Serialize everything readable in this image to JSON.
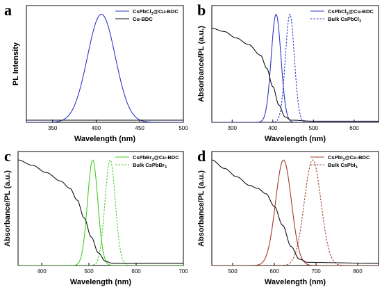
{
  "chart_data": [
    {
      "panel": "a",
      "type": "line",
      "xlabel": "Wavelength (nm)",
      "ylabel": "PL Intensity",
      "xlim": [
        320,
        500
      ],
      "ylim": [
        0,
        1.08
      ],
      "xticks": [
        350,
        400,
        450,
        500
      ],
      "legend_position": "top-right",
      "series": [
        {
          "name": "CsPbCl3@Cu-BDC",
          "legend": {
            "base": "CsPbCl",
            "sub": "3",
            "rest": "@Cu-BDC"
          },
          "color": "#2e35c8",
          "dash": false,
          "kind": "gauss",
          "center": 406,
          "sigma": 16,
          "amp": 1.0,
          "offset": 0.0
        },
        {
          "name": "Cu-BDC",
          "legend": {
            "base": "Cu-BDC",
            "sub": "",
            "rest": ""
          },
          "color": "#111111",
          "dash": false,
          "kind": "flat",
          "value": 0.02
        }
      ]
    },
    {
      "panel": "b",
      "type": "line",
      "xlabel": "Wavelength (nm)",
      "ylabel": "Absorbance/PL (a.u.)",
      "xlim": [
        250,
        660
      ],
      "ylim": [
        0,
        1.08
      ],
      "xticks": [
        300,
        400,
        500,
        600
      ],
      "legend_position": "top-right",
      "series": [
        {
          "name": "CsPbCl3@Cu-BDC",
          "legend": {
            "base": "CsPbCl",
            "sub": "3",
            "rest": "@Cu-BDC"
          },
          "color": "#2e35c8",
          "dash": false,
          "kind": "gauss",
          "center": 408,
          "sigma": 12,
          "amp": 1.0,
          "offset": 0.0
        },
        {
          "name": "Bulk CsPbCl3",
          "legend": {
            "base": "Bulk CsPbCl",
            "sub": "3",
            "rest": ""
          },
          "color": "#2e35c8",
          "dash": true,
          "kind": "gauss",
          "center": 442,
          "sigma": 11,
          "amp": 1.0,
          "offset": 0.0
        },
        {
          "name": "Absorbance",
          "color": "#111111",
          "dash": false,
          "kind": "absorb",
          "points": [
            [
              250,
              0.87
            ],
            [
              280,
              0.84
            ],
            [
              310,
              0.78
            ],
            [
              340,
              0.72
            ],
            [
              370,
              0.62
            ],
            [
              385,
              0.5
            ],
            [
              400,
              0.33
            ],
            [
              415,
              0.16
            ],
            [
              430,
              0.05
            ],
            [
              445,
              0.02
            ],
            [
              500,
              0.01
            ],
            [
              660,
              0.01
            ]
          ]
        }
      ]
    },
    {
      "panel": "c",
      "type": "line",
      "xlabel": "Wavelength (nm)",
      "ylabel": "Absorbance/PL (a.u.)",
      "xlim": [
        350,
        700
      ],
      "ylim": [
        0,
        1.08
      ],
      "xticks": [
        400,
        500,
        600,
        700
      ],
      "legend_position": "top-right",
      "series": [
        {
          "name": "CsPbBr3@Cu-BDC",
          "legend": {
            "base": "CsPbBr",
            "sub": "3",
            "rest": "@Cu-BDC"
          },
          "color": "#3fcf1f",
          "dash": false,
          "kind": "gauss",
          "center": 508,
          "sigma": 11,
          "amp": 1.0,
          "offset": 0.0
        },
        {
          "name": "Bulk CsPbBr3",
          "legend": {
            "base": "Bulk CsPbBr",
            "sub": "3",
            "rest": ""
          },
          "color": "#3fcf1f",
          "dash": true,
          "kind": "gauss",
          "center": 545,
          "sigma": 11,
          "amp": 1.0,
          "offset": 0.0
        },
        {
          "name": "Absorbance",
          "color": "#111111",
          "dash": false,
          "kind": "absorb",
          "points": [
            [
              350,
              1.0
            ],
            [
              380,
              0.95
            ],
            [
              410,
              0.88
            ],
            [
              440,
              0.8
            ],
            [
              460,
              0.73
            ],
            [
              475,
              0.62
            ],
            [
              490,
              0.45
            ],
            [
              505,
              0.27
            ],
            [
              520,
              0.12
            ],
            [
              535,
              0.04
            ],
            [
              550,
              0.02
            ],
            [
              700,
              0.02
            ]
          ]
        }
      ]
    },
    {
      "panel": "d",
      "type": "line",
      "xlabel": "Wavelength (nm)",
      "ylabel": "Absorbance/PL (a.u.)",
      "xlim": [
        450,
        850
      ],
      "ylim": [
        0,
        1.08
      ],
      "xticks": [
        500,
        600,
        700,
        800
      ],
      "legend_position": "top-right",
      "series": [
        {
          "name": "CsPbI3@Cu-BDC",
          "legend": {
            "base": "CsPbI",
            "sub": "3",
            "rest": "@Cu-BDC"
          },
          "color": "#a23a24",
          "dash": false,
          "kind": "gauss",
          "center": 622,
          "sigma": 19,
          "amp": 1.0,
          "offset": 0.0
        },
        {
          "name": "Bulk CsPbI3",
          "legend": {
            "base": "Bulk CsPbI",
            "sub": "3",
            "rest": ""
          },
          "color": "#a23a24",
          "dash": true,
          "kind": "gauss",
          "center": 692,
          "sigma": 20,
          "amp": 1.0,
          "offset": 0.0
        },
        {
          "name": "Absorbance",
          "color": "#111111",
          "dash": false,
          "kind": "absorb",
          "points": [
            [
              450,
              1.0
            ],
            [
              480,
              0.92
            ],
            [
              510,
              0.84
            ],
            [
              540,
              0.76
            ],
            [
              560,
              0.73
            ],
            [
              580,
              0.68
            ],
            [
              600,
              0.56
            ],
            [
              620,
              0.38
            ],
            [
              640,
              0.18
            ],
            [
              660,
              0.06
            ],
            [
              680,
              0.03
            ],
            [
              850,
              0.02
            ]
          ]
        }
      ]
    }
  ]
}
